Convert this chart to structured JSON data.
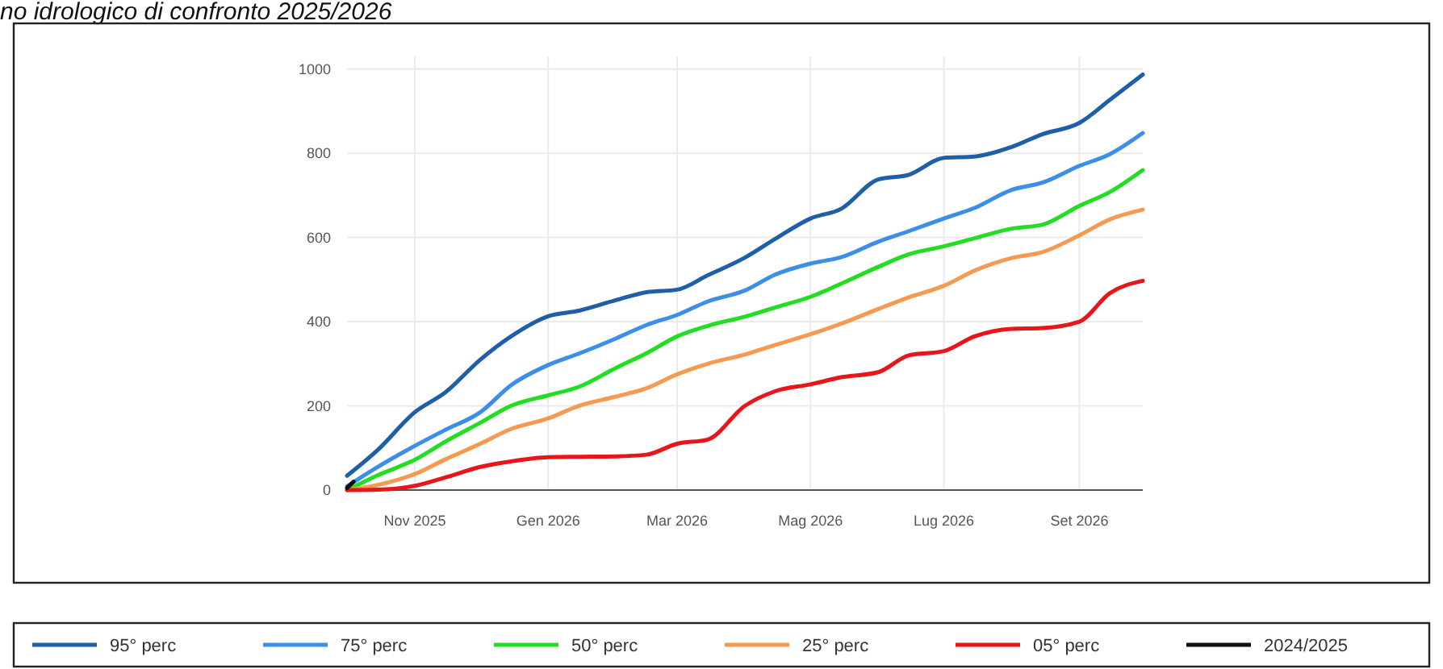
{
  "chart_data": {
    "type": "line",
    "title": "no idrologico di confronto 2025/2026",
    "x": [
      "2025-10-01",
      "2025-10-15",
      "2025-11-01",
      "2025-11-15",
      "2025-12-01",
      "2025-12-15",
      "2026-01-01",
      "2026-01-15",
      "2026-02-01",
      "2026-02-15",
      "2026-03-01",
      "2026-03-15",
      "2026-04-01",
      "2026-04-15",
      "2026-05-01",
      "2026-05-15",
      "2026-06-01",
      "2026-06-15",
      "2026-07-01",
      "2026-07-15",
      "2026-08-01",
      "2026-08-15",
      "2026-09-01",
      "2026-09-15",
      "2026-09-30"
    ],
    "series": [
      {
        "name": "95° perc",
        "color": "#1f5fa8",
        "values": [
          34,
          95,
          185,
          232,
          310,
          365,
          413,
          426,
          451,
          470,
          476,
          510,
          552,
          597,
          645,
          668,
          738,
          749,
          789,
          792,
          815,
          845,
          872,
          927,
          987
        ]
      },
      {
        "name": "75° perc",
        "color": "#3d8ee8",
        "values": [
          9,
          55,
          105,
          143,
          185,
          249,
          297,
          324,
          360,
          392,
          416,
          448,
          474,
          512,
          538,
          553,
          590,
          615,
          645,
          670,
          713,
          730,
          770,
          798,
          848
        ]
      },
      {
        "name": "50° perc",
        "color": "#22dd22",
        "values": [
          0,
          35,
          72,
          115,
          160,
          200,
          225,
          245,
          290,
          325,
          365,
          390,
          412,
          434,
          459,
          490,
          530,
          560,
          579,
          598,
          621,
          630,
          675,
          708,
          760
        ]
      },
      {
        "name": "25° perc",
        "color": "#f59a50",
        "values": [
          0,
          12,
          38,
          73,
          110,
          145,
          170,
          200,
          222,
          242,
          275,
          300,
          322,
          345,
          370,
          395,
          430,
          458,
          485,
          521,
          551,
          565,
          605,
          643,
          666
        ]
      },
      {
        "name": "05° perc",
        "color": "#e8161b",
        "values": [
          0,
          1,
          10,
          30,
          55,
          68,
          78,
          79,
          80,
          84,
          110,
          120,
          200,
          235,
          251,
          268,
          280,
          320,
          330,
          365,
          383,
          385,
          400,
          468,
          497
        ]
      },
      {
        "name": "2024/2025",
        "color": "#111111",
        "x": [
          "2025-10-01",
          "2025-10-04"
        ],
        "values": [
          5,
          20
        ]
      }
    ],
    "xlim": [
      "2025-10-01",
      "2026-09-30"
    ],
    "xticks": [
      {
        "value": "2025-11-01",
        "label": "Nov 2025"
      },
      {
        "value": "2026-01-01",
        "label": "Gen 2026"
      },
      {
        "value": "2026-03-01",
        "label": "Mar 2026"
      },
      {
        "value": "2026-05-01",
        "label": "Mag 2026"
      },
      {
        "value": "2026-07-01",
        "label": "Lug 2026"
      },
      {
        "value": "2026-09-01",
        "label": "Set 2026"
      }
    ],
    "ylim": [
      0,
      1030
    ],
    "yticks": [
      0,
      200,
      400,
      600,
      800,
      1000
    ],
    "grid": true,
    "legend": "bottom",
    "marker": "none",
    "line_style": "solid"
  }
}
